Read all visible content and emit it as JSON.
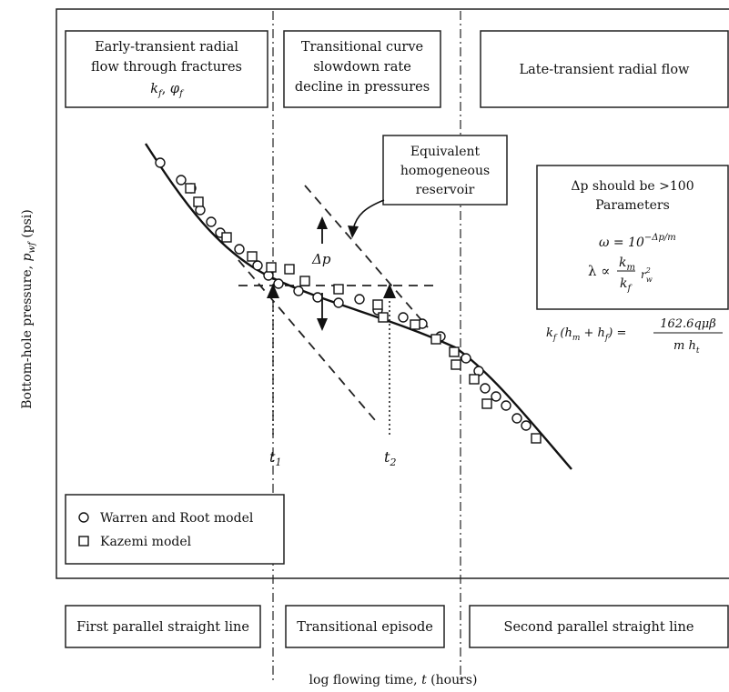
{
  "axes": {
    "ylabel_main": "Bottom-hole pressure, ",
    "ylabel_sym": "p",
    "ylabel_sub": "wf",
    "ylabel_unit": " (psi)",
    "xlabel_main": "log flowing time, ",
    "xlabel_sym": "t",
    "xlabel_unit": " (hours)"
  },
  "top_boxes": {
    "early_line1": "Early-transient radial",
    "early_line2": "flow through fractures",
    "early_kf": "k",
    "early_kf_sub": "f",
    "early_sep": ", ",
    "early_phi": "φ",
    "early_phi_sub": "f",
    "transitional_line1": "Transitional curve",
    "transitional_line2": "slowdown rate",
    "transitional_line3": "decline in pressures",
    "late": "Late-transient radial flow"
  },
  "callout": {
    "line1": "Equivalent",
    "line2": "homogeneous",
    "line3": "reservoir"
  },
  "delta_p_label": "Δp",
  "t1_label": "t",
  "t1_sub": "1",
  "t2_label": "t",
  "t2_sub": "2",
  "params": {
    "line1": "Δp should be >100",
    "line2": "Parameters",
    "omega_lhs": "ω = 10",
    "omega_exp": "−Δp/m",
    "lambda_lhs": "λ ∝",
    "lambda_num": "k",
    "lambda_num_sub": "m",
    "lambda_den": "k",
    "lambda_den_sub": "f",
    "lambda_rw": "r",
    "lambda_rw_sup": "2",
    "lambda_rw_sub": "w",
    "kf_lhs": "k",
    "kf_lhs_sub": "f",
    "kf_mid": " (h",
    "kf_hm_sub": "m",
    "kf_plus": " + h",
    "kf_hf_sub": "f",
    "kf_close": ") =",
    "kf_num": "162.6qμβ",
    "kf_den": "m h",
    "kf_den_sub": "t"
  },
  "legend": {
    "circle_label": "Warren and Root model",
    "square_label": "Kazemi model"
  },
  "bottom_boxes": {
    "first": "First parallel straight line",
    "transitional": "Transitional episode",
    "second": "Second parallel straight line"
  }
}
